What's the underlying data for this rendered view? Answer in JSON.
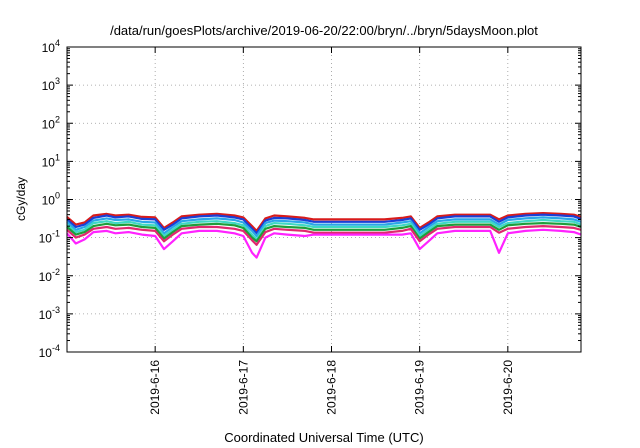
{
  "chart_data": {
    "type": "line",
    "title": "/data/run/goesPlots/archive/2019-06-20/22:00/bryn/../bryn/5daysMoon.plot",
    "xlabel": "Coordinated Universal Time (UTC)",
    "ylabel": "cGy/day",
    "yscale": "log",
    "ylim": [
      0.0001,
      10000
    ],
    "xlim": [
      0,
      5.83
    ],
    "grid": true,
    "y_ticks": [
      {
        "base": "10",
        "exp": "-4",
        "value": 0.0001
      },
      {
        "base": "10",
        "exp": "-3",
        "value": 0.001
      },
      {
        "base": "10",
        "exp": "-2",
        "value": 0.01
      },
      {
        "base": "10",
        "exp": "-1",
        "value": 0.1
      },
      {
        "base": "10",
        "exp": "0",
        "value": 1
      },
      {
        "base": "10",
        "exp": "1",
        "value": 10
      },
      {
        "base": "10",
        "exp": "2",
        "value": 100
      },
      {
        "base": "10",
        "exp": "3",
        "value": 1000
      },
      {
        "base": "10",
        "exp": "4",
        "value": 10000
      }
    ],
    "x_ticks": [
      {
        "label": "2019-6-16",
        "x": 1
      },
      {
        "label": "2019-6-17",
        "x": 2
      },
      {
        "label": "2019-6-18",
        "x": 3
      },
      {
        "label": "2019-6-19",
        "x": 4
      },
      {
        "label": "2019-6-20",
        "x": 5
      }
    ],
    "x": [
      0.0,
      0.1,
      0.2,
      0.3,
      0.45,
      0.55,
      0.7,
      0.85,
      1.0,
      1.1,
      1.2,
      1.3,
      1.5,
      1.7,
      1.9,
      2.0,
      2.1,
      2.15,
      2.25,
      2.35,
      2.5,
      2.7,
      2.8,
      3.0,
      3.2,
      3.4,
      3.6,
      3.8,
      3.9,
      4.0,
      4.1,
      4.2,
      4.4,
      4.6,
      4.8,
      4.9,
      5.0,
      5.2,
      5.4,
      5.6,
      5.75,
      5.83
    ],
    "series": [
      {
        "color": "#d81b1b",
        "values": [
          0.35,
          0.22,
          0.25,
          0.38,
          0.42,
          0.38,
          0.4,
          0.35,
          0.34,
          0.18,
          0.25,
          0.36,
          0.4,
          0.42,
          0.38,
          0.34,
          0.2,
          0.15,
          0.32,
          0.38,
          0.36,
          0.33,
          0.3,
          0.3,
          0.3,
          0.3,
          0.3,
          0.33,
          0.36,
          0.18,
          0.25,
          0.36,
          0.4,
          0.4,
          0.4,
          0.3,
          0.38,
          0.42,
          0.44,
          0.42,
          0.4,
          0.35
        ]
      },
      {
        "color": "#1a3fd6",
        "values": [
          0.3,
          0.19,
          0.22,
          0.33,
          0.38,
          0.34,
          0.36,
          0.31,
          0.3,
          0.16,
          0.22,
          0.32,
          0.36,
          0.38,
          0.34,
          0.3,
          0.17,
          0.13,
          0.28,
          0.33,
          0.32,
          0.29,
          0.26,
          0.26,
          0.26,
          0.26,
          0.26,
          0.29,
          0.32,
          0.16,
          0.22,
          0.32,
          0.36,
          0.36,
          0.36,
          0.26,
          0.34,
          0.38,
          0.4,
          0.38,
          0.36,
          0.31
        ]
      },
      {
        "color": "#2aa6e8",
        "values": [
          0.26,
          0.16,
          0.19,
          0.28,
          0.32,
          0.29,
          0.3,
          0.26,
          0.25,
          0.13,
          0.19,
          0.27,
          0.3,
          0.32,
          0.29,
          0.25,
          0.15,
          0.11,
          0.24,
          0.28,
          0.27,
          0.25,
          0.22,
          0.22,
          0.22,
          0.22,
          0.22,
          0.25,
          0.27,
          0.13,
          0.19,
          0.27,
          0.3,
          0.3,
          0.3,
          0.22,
          0.29,
          0.32,
          0.34,
          0.32,
          0.3,
          0.26
        ]
      },
      {
        "color": "#3ed9c3",
        "values": [
          0.22,
          0.14,
          0.16,
          0.24,
          0.27,
          0.24,
          0.26,
          0.22,
          0.21,
          0.11,
          0.16,
          0.23,
          0.26,
          0.27,
          0.24,
          0.21,
          0.12,
          0.09,
          0.2,
          0.24,
          0.23,
          0.21,
          0.19,
          0.19,
          0.19,
          0.19,
          0.19,
          0.21,
          0.23,
          0.11,
          0.16,
          0.23,
          0.26,
          0.26,
          0.26,
          0.19,
          0.24,
          0.27,
          0.29,
          0.27,
          0.26,
          0.22
        ]
      },
      {
        "color": "#1e9e3a",
        "values": [
          0.19,
          0.12,
          0.14,
          0.2,
          0.23,
          0.21,
          0.22,
          0.19,
          0.18,
          0.095,
          0.14,
          0.2,
          0.22,
          0.23,
          0.21,
          0.18,
          0.1,
          0.08,
          0.17,
          0.2,
          0.19,
          0.18,
          0.16,
          0.16,
          0.16,
          0.16,
          0.16,
          0.18,
          0.2,
          0.095,
          0.14,
          0.2,
          0.22,
          0.22,
          0.22,
          0.16,
          0.21,
          0.23,
          0.24,
          0.23,
          0.22,
          0.19
        ]
      },
      {
        "color": "#e0286e",
        "values": [
          0.16,
          0.1,
          0.12,
          0.17,
          0.19,
          0.17,
          0.18,
          0.16,
          0.15,
          0.08,
          0.12,
          0.17,
          0.19,
          0.19,
          0.17,
          0.15,
          0.085,
          0.065,
          0.14,
          0.17,
          0.16,
          0.15,
          0.135,
          0.135,
          0.135,
          0.135,
          0.135,
          0.15,
          0.17,
          0.08,
          0.12,
          0.17,
          0.19,
          0.19,
          0.19,
          0.135,
          0.17,
          0.19,
          0.2,
          0.19,
          0.18,
          0.16
        ]
      },
      {
        "color": "#ff22ff",
        "values": [
          0.13,
          0.07,
          0.09,
          0.14,
          0.15,
          0.13,
          0.14,
          0.12,
          0.11,
          0.05,
          0.08,
          0.13,
          0.15,
          0.15,
          0.13,
          0.11,
          0.04,
          0.03,
          0.1,
          0.13,
          0.12,
          0.11,
          0.12,
          0.12,
          0.12,
          0.12,
          0.12,
          0.12,
          0.13,
          0.05,
          0.08,
          0.13,
          0.15,
          0.15,
          0.15,
          0.04,
          0.13,
          0.15,
          0.16,
          0.15,
          0.14,
          0.12
        ]
      }
    ]
  }
}
